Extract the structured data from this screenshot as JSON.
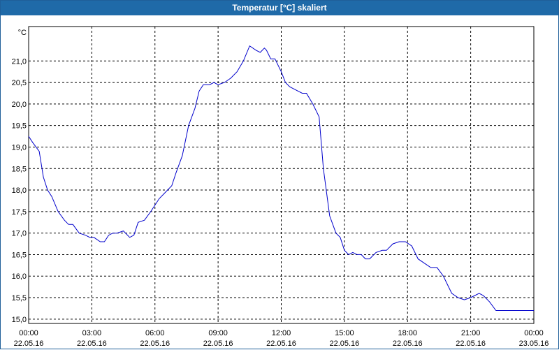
{
  "window": {
    "title": "Temperatur [°C] skaliert"
  },
  "chart_data": {
    "type": "line",
    "title": "Temperatur [°C] skaliert",
    "unit_label": "°C",
    "ylim": [
      14.9,
      21.8
    ],
    "yticks": [
      "15,0",
      "15,5",
      "16,0",
      "16,5",
      "17,0",
      "17,5",
      "18,0",
      "18,5",
      "19,0",
      "19,5",
      "20,0",
      "20,5",
      "21,0"
    ],
    "ytick_values": [
      15.0,
      15.5,
      16.0,
      16.5,
      17.0,
      17.5,
      18.0,
      18.5,
      19.0,
      19.5,
      20.0,
      20.5,
      21.0
    ],
    "xlim_hours": [
      0,
      24
    ],
    "xticks": [
      {
        "time": "00:00",
        "date": "22.05.16"
      },
      {
        "time": "03:00",
        "date": "22.05.16"
      },
      {
        "time": "06:00",
        "date": "22.05.16"
      },
      {
        "time": "09:00",
        "date": "22.05.16"
      },
      {
        "time": "12:00",
        "date": "22.05.16"
      },
      {
        "time": "15:00",
        "date": "22.05.16"
      },
      {
        "time": "18:00",
        "date": "22.05.16"
      },
      {
        "time": "21:00",
        "date": "22.05.16"
      },
      {
        "time": "00:00",
        "date": "23.05.16"
      }
    ],
    "grid": true,
    "series": [
      {
        "color": "#0000cc",
        "x": [
          0.0,
          0.2,
          0.5,
          0.7,
          0.9,
          1.1,
          1.4,
          1.7,
          1.9,
          2.1,
          2.4,
          2.7,
          2.9,
          3.1,
          3.4,
          3.6,
          3.8,
          4.0,
          4.2,
          4.5,
          4.8,
          5.0,
          5.2,
          5.5,
          5.8,
          6.0,
          6.2,
          6.5,
          6.8,
          7.0,
          7.3,
          7.6,
          7.9,
          8.1,
          8.3,
          8.6,
          8.8,
          9.0,
          9.3,
          9.6,
          9.9,
          10.2,
          10.5,
          10.8,
          11.0,
          11.2,
          11.3,
          11.5,
          11.7,
          12.0,
          12.2,
          12.4,
          12.6,
          12.8,
          13.0,
          13.2,
          13.5,
          13.8,
          14.0,
          14.3,
          14.6,
          14.8,
          15.0,
          15.2,
          15.4,
          15.6,
          15.8,
          16.0,
          16.2,
          16.5,
          16.8,
          17.0,
          17.3,
          17.6,
          17.9,
          18.2,
          18.5,
          18.8,
          19.1,
          19.4,
          19.7,
          19.9,
          20.1,
          20.4,
          20.7,
          21.0,
          21.2,
          21.4,
          21.6,
          21.9,
          22.2,
          22.5,
          22.8,
          23.1,
          23.4,
          23.7,
          24.0
        ],
        "y": [
          19.25,
          19.1,
          18.9,
          18.3,
          18.0,
          17.85,
          17.5,
          17.3,
          17.2,
          17.2,
          17.0,
          16.95,
          16.9,
          16.9,
          16.8,
          16.8,
          16.95,
          17.0,
          17.0,
          17.05,
          16.9,
          16.95,
          17.25,
          17.3,
          17.5,
          17.65,
          17.8,
          17.95,
          18.1,
          18.4,
          18.8,
          19.5,
          19.9,
          20.3,
          20.45,
          20.45,
          20.5,
          20.45,
          20.5,
          20.6,
          20.75,
          21.0,
          21.35,
          21.25,
          21.2,
          21.3,
          21.25,
          21.05,
          21.05,
          20.75,
          20.5,
          20.4,
          20.35,
          20.3,
          20.25,
          20.25,
          20.0,
          19.7,
          18.5,
          17.4,
          17.0,
          16.9,
          16.6,
          16.5,
          16.55,
          16.5,
          16.5,
          16.4,
          16.4,
          16.55,
          16.6,
          16.6,
          16.75,
          16.8,
          16.8,
          16.7,
          16.4,
          16.3,
          16.2,
          16.2,
          16.0,
          15.8,
          15.6,
          15.5,
          15.45,
          15.5,
          15.55,
          15.6,
          15.55,
          15.4,
          15.2,
          15.2,
          15.2,
          15.2,
          15.2,
          15.2,
          15.2
        ]
      }
    ]
  }
}
